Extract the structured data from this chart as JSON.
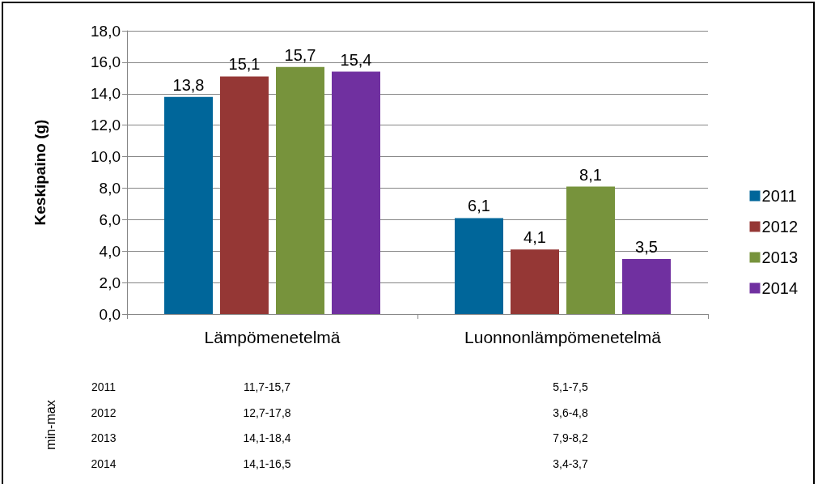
{
  "chart_data": {
    "type": "bar",
    "ylabel": "Keskipaino (g)",
    "categories": [
      "Lämpömenetelmä",
      "Luonnonlämpömenetelmä"
    ],
    "series": [
      {
        "name": "2011",
        "color": "#00669a",
        "values": [
          13.8,
          6.1
        ],
        "value_labels": [
          "13,8",
          "6,1"
        ]
      },
      {
        "name": "2012",
        "color": "#953735",
        "values": [
          15.1,
          4.1
        ],
        "value_labels": [
          "15,1",
          "4,1"
        ]
      },
      {
        "name": "2013",
        "color": "#77933c",
        "values": [
          15.7,
          8.1
        ],
        "value_labels": [
          "15,7",
          "8,1"
        ]
      },
      {
        "name": "2014",
        "color": "#7030a0",
        "values": [
          15.4,
          3.5
        ],
        "value_labels": [
          "15,4",
          "3,5"
        ]
      }
    ],
    "ylim": [
      0,
      18
    ],
    "yticks": [
      {
        "value": 0,
        "label": "0,0"
      },
      {
        "value": 2,
        "label": "2,0"
      },
      {
        "value": 4,
        "label": "4,0"
      },
      {
        "value": 6,
        "label": "6,0"
      },
      {
        "value": 8,
        "label": "8,0"
      },
      {
        "value": 10,
        "label": "10,0"
      },
      {
        "value": 12,
        "label": "12,0"
      },
      {
        "value": 14,
        "label": "14,0"
      },
      {
        "value": 16,
        "label": "16,0"
      },
      {
        "value": 18,
        "label": "18,0"
      }
    ],
    "grid": "y",
    "legend": "right",
    "annotations": [
      "min-max",
      "2011",
      "11,7-15,7",
      "5,1-7,5",
      "2012",
      "12,7-17,8",
      "3,6-4,8",
      "2013",
      "14,1-18,4",
      "7,9-8,2",
      "2014",
      "14,1-16,5",
      "3,4-3,7"
    ]
  }
}
